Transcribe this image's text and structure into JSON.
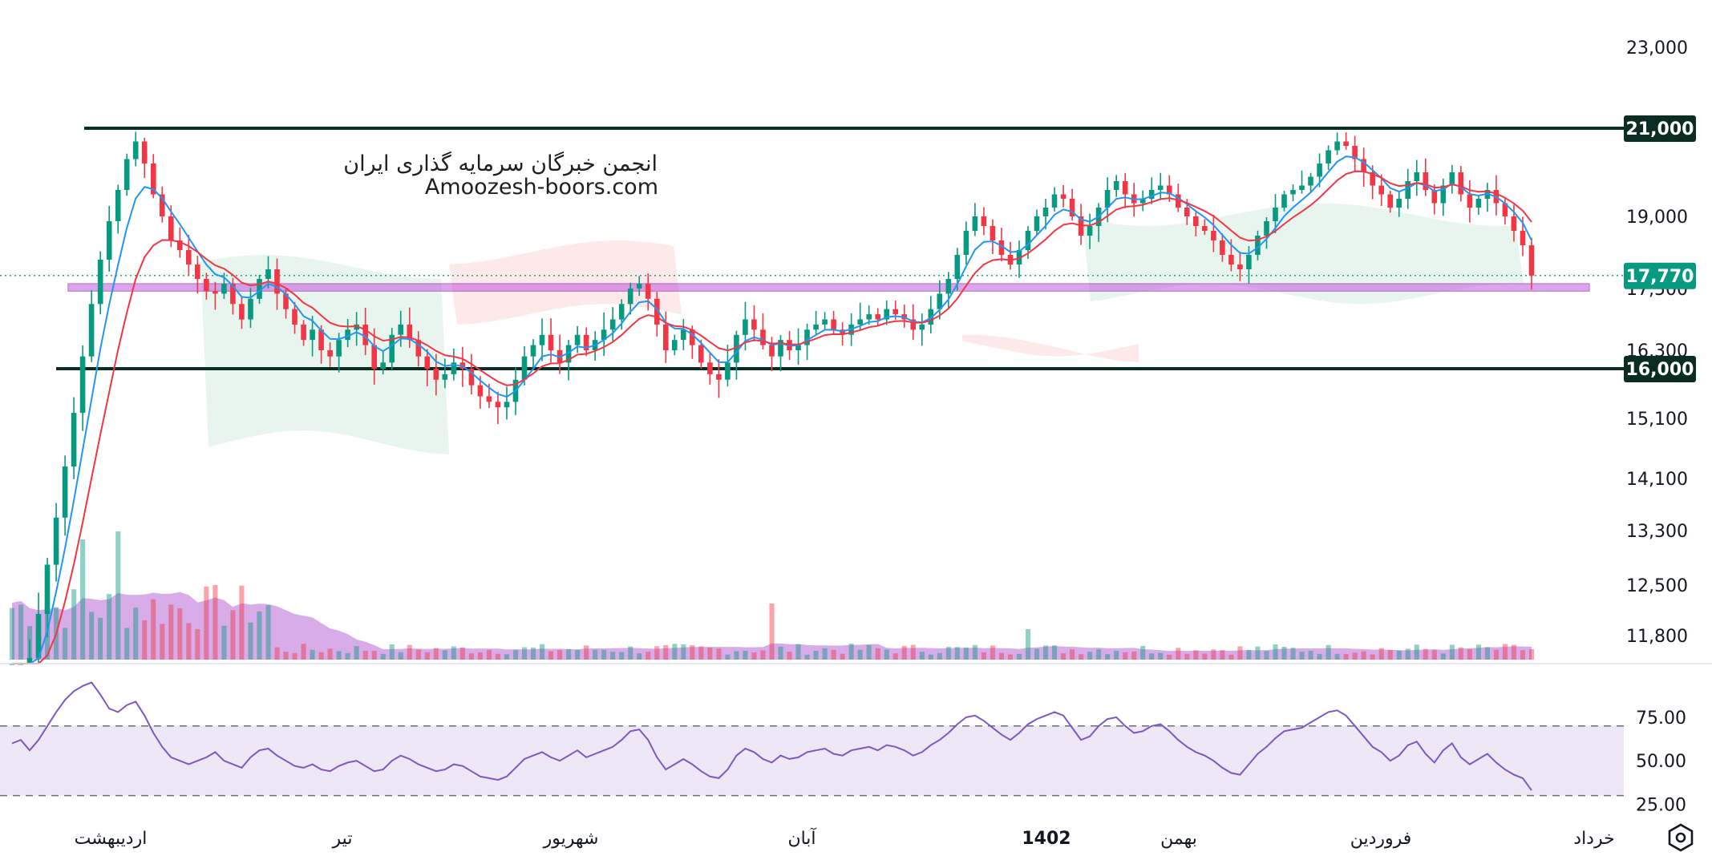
{
  "watermark": {
    "line1": "انجمن خبرگان سرمایه گذاری ایران",
    "line2": "Amoozesh-boors.com"
  },
  "colors": {
    "up": "#089981",
    "down": "#f23645",
    "ma_fast": "#2196f3",
    "ma_slow": "#f23645",
    "support_line": "#0a2d23",
    "zone": "#c15ae0",
    "rsi_line": "#7e57c2",
    "rsi_band": "#ede7f6",
    "volume_area": "#b667d6",
    "last_price": "#089981"
  },
  "chart_data": [
    {
      "type": "candlestick",
      "price_axis_ticks": [
        "23,000",
        "21,000",
        "19,000",
        "17,500",
        "16,300",
        "16,000",
        "15,100",
        "14,100",
        "13,300",
        "12,500",
        "11,800"
      ],
      "price_axis_values": [
        23000,
        21000,
        19000,
        17500,
        16300,
        16000,
        15100,
        14100,
        13300,
        12500,
        11800
      ],
      "time_axis_labels": [
        "اردیبهشت",
        "تیر",
        "شهریور",
        "آبان",
        "1402",
        "بهمن",
        "فروردین",
        "خرداد"
      ],
      "horizontal_levels": [
        {
          "value": 21000,
          "label": "21,000"
        },
        {
          "value": 16000,
          "label": "16,000"
        }
      ],
      "zone": {
        "from": 17450,
        "to": 17600
      },
      "last_price": {
        "value": 17770,
        "label": "17,770"
      },
      "ylim": [
        11300,
        23500
      ],
      "series": [
        {
          "kind": "close",
          "values": [
            10800,
            11000,
            11400,
            12100,
            12800,
            13500,
            14300,
            15200,
            16200,
            17200,
            18100,
            18900,
            19600,
            20300,
            20700,
            20200,
            19500,
            19000,
            18500,
            18300,
            18000,
            17700,
            17450,
            17400,
            17600,
            17200,
            16900,
            17300,
            17700,
            17900,
            17400,
            17100,
            16800,
            16500,
            16700,
            16300,
            16200,
            16500,
            16700,
            16800,
            16400,
            16000,
            16100,
            16600,
            16800,
            16500,
            16200,
            16000,
            15800,
            15900,
            16100,
            16000,
            15700,
            15500,
            15400,
            15300,
            15400,
            15800,
            16200,
            16400,
            16600,
            16300,
            16100,
            16400,
            16600,
            16300,
            16500,
            16700,
            16900,
            17200,
            17500,
            17600,
            17300,
            16800,
            16300,
            16500,
            16700,
            16400,
            16100,
            15900,
            15800,
            16100,
            16600,
            16900,
            16700,
            16400,
            16200,
            16500,
            16300,
            16400,
            16700,
            16800,
            16900,
            16700,
            16600,
            16800,
            16900,
            17000,
            16900,
            17100,
            17000,
            16900,
            16700,
            16800,
            17100,
            17400,
            17700,
            18200,
            18700,
            19000,
            18800,
            18500,
            18200,
            18000,
            18300,
            18700,
            19000,
            19200,
            19500,
            19400,
            19000,
            18600,
            18800,
            19200,
            19600,
            19800,
            19500,
            19300,
            19400,
            19600,
            19700,
            19500,
            19200,
            19000,
            18800,
            18700,
            18500,
            18200,
            18000,
            17900,
            18200,
            18600,
            18900,
            19200,
            19500,
            19600,
            19700,
            19900,
            20200,
            20500,
            20700,
            20600,
            20300,
            20000,
            19700,
            19500,
            19200,
            19400,
            19800,
            20000,
            19600,
            19300,
            19700,
            20000,
            19500,
            19200,
            19400,
            19600,
            19300,
            19000,
            18700,
            18400,
            17770
          ]
        },
        {
          "kind": "ma_fast",
          "label": "MA fast"
        },
        {
          "kind": "ma_slow",
          "label": "MA slow"
        },
        {
          "kind": "volume",
          "label": "Volume"
        }
      ]
    },
    {
      "type": "line",
      "name": "RSI",
      "ticks": [
        "75.00",
        "50.00",
        "25.00"
      ],
      "tick_values": [
        75,
        50,
        25
      ],
      "band": [
        30,
        70
      ],
      "ylim": [
        22,
        98
      ],
      "values": [
        60,
        62,
        56,
        62,
        70,
        78,
        85,
        90,
        93,
        95,
        88,
        80,
        78,
        82,
        84,
        76,
        66,
        58,
        52,
        50,
        48,
        50,
        52,
        55,
        50,
        48,
        46,
        52,
        56,
        57,
        53,
        50,
        47,
        46,
        48,
        45,
        44,
        47,
        49,
        50,
        47,
        44,
        45,
        50,
        53,
        51,
        48,
        46,
        44,
        45,
        48,
        47,
        44,
        41,
        40,
        39,
        41,
        46,
        51,
        53,
        55,
        52,
        50,
        53,
        56,
        52,
        54,
        56,
        58,
        62,
        67,
        68,
        62,
        52,
        45,
        48,
        51,
        48,
        44,
        41,
        40,
        45,
        53,
        57,
        55,
        51,
        49,
        53,
        51,
        52,
        55,
        56,
        57,
        54,
        53,
        56,
        57,
        58,
        56,
        59,
        58,
        56,
        53,
        55,
        59,
        62,
        66,
        71,
        75,
        76,
        73,
        69,
        65,
        62,
        66,
        71,
        74,
        76,
        78,
        76,
        69,
        62,
        64,
        70,
        74,
        75,
        70,
        66,
        67,
        70,
        71,
        67,
        62,
        58,
        55,
        53,
        50,
        46,
        43,
        42,
        48,
        54,
        58,
        63,
        67,
        68,
        69,
        72,
        75,
        78,
        79,
        76,
        70,
        64,
        58,
        55,
        50,
        53,
        59,
        61,
        54,
        49,
        56,
        60,
        52,
        48,
        51,
        54,
        49,
        45,
        42,
        40,
        33
      ]
    }
  ]
}
